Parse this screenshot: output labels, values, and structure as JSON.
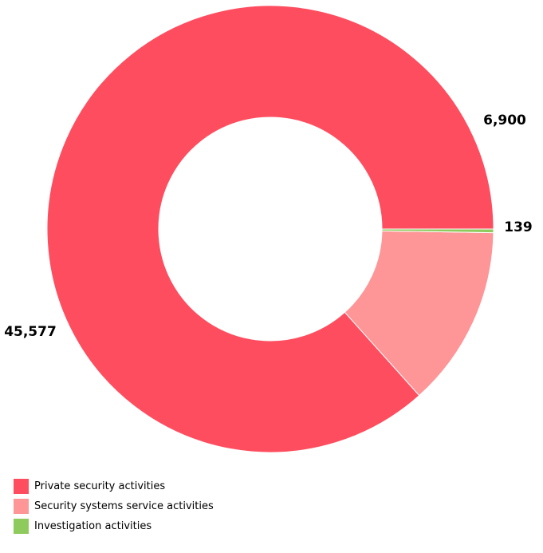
{
  "chart_data": {
    "type": "pie",
    "donut": true,
    "title": "",
    "categories": [
      "Private security activities",
      "Security systems service activities",
      "Investigation activities"
    ],
    "values": [
      45577,
      6900,
      139
    ],
    "data_labels": [
      "45,577",
      "6,900",
      "139"
    ],
    "colors": [
      "#fe4d5e",
      "#fe9597",
      "#8fca5c"
    ],
    "legend_position": "bottom-left"
  }
}
